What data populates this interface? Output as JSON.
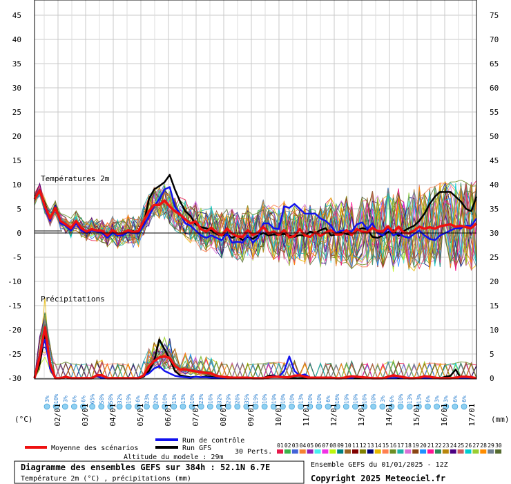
{
  "chart_data": {
    "type": "line",
    "title": "Diagramme des ensembles GEFS sur 384h : 52.1N 6.7E",
    "subtitle": "Température 2m (°C) , précipitations (mm)",
    "model_altitude": "Altitude du modele : 29m",
    "run_info": "Ensemble GEFS du 01/01/2025 - 12Z",
    "copyright": "Copyright 2025 Meteociel.fr",
    "left_unit": "(°C)",
    "right_unit": "(mm)",
    "temp_section_label": "Températures 2m",
    "precip_section_label": "Précipitations",
    "left_ticks": [
      "45",
      "40",
      "35",
      "30",
      "25",
      "20",
      "15",
      "10",
      "5",
      "0",
      "-5",
      "-10",
      "-15",
      "-20",
      "-25",
      "-30"
    ],
    "right_ticks": [
      "75",
      "70",
      "65",
      "60",
      "55",
      "50",
      "45",
      "40",
      "35",
      "30",
      "25",
      "20",
      "15",
      "10",
      "5",
      "0"
    ],
    "date_labels": [
      "02/01",
      "03/01",
      "04/01",
      "05/01",
      "06/01",
      "07/01",
      "08/01",
      "09/01",
      "10/01",
      "11/01",
      "12/01",
      "13/01",
      "14/01",
      "15/01",
      "16/01",
      "17/01"
    ],
    "precip_probabilities": [
      "3%",
      "10%",
      "3%",
      "6%",
      "6%",
      "65%",
      "58%",
      "58%",
      "32%",
      "19%",
      "6%",
      "23%",
      "29%",
      "10%",
      "13%",
      "13%",
      "10%",
      "23%",
      "16%",
      "32%",
      "29%",
      "26%",
      "35%",
      "19%",
      "10%",
      "19%",
      "10%",
      "10%",
      "13%",
      "10%",
      "10%",
      "6%",
      "16%",
      "19%",
      "10%",
      "16%",
      "10%",
      "3%",
      "6%",
      "10%",
      "13%",
      "13%",
      "6%",
      "3%",
      "3%",
      "6%",
      "6%"
    ],
    "ylim_temp": [
      -30,
      45
    ],
    "ylim_precip": [
      0,
      75
    ],
    "legend": {
      "mean": "Moyenne des scénarios",
      "control": "Run de contrôle",
      "gfs": "Run GFS",
      "perts_label": "30 Perts.",
      "pert_ids": [
        "01",
        "02",
        "03",
        "04",
        "05",
        "06",
        "07",
        "08",
        "09",
        "10",
        "11",
        "12",
        "13",
        "14",
        "15",
        "16",
        "17",
        "18",
        "19",
        "20",
        "21",
        "22",
        "23",
        "24",
        "25",
        "26",
        "27",
        "28",
        "29",
        "30"
      ]
    },
    "colors": {
      "mean": "#ee1111",
      "control": "#1111ee",
      "gfs": "#000000",
      "perts": [
        "#e6194b",
        "#3cb44b",
        "#4363d8",
        "#f58231",
        "#911eb4",
        "#46f0f0",
        "#f032e6",
        "#bcf60c",
        "#008080",
        "#9a6324",
        "#800000",
        "#808000",
        "#000075",
        "#e6b800",
        "#ff7f50",
        "#6b8e23",
        "#20b2aa",
        "#da70d6",
        "#8b4513",
        "#1e90ff",
        "#ff1493",
        "#2e8b57",
        "#b8860b",
        "#4b0082",
        "#cd5c5c",
        "#00ced1",
        "#9acd32",
        "#ff8c00",
        "#708090",
        "#556b2f"
      ]
    },
    "series": [
      {
        "name": "Moyenne des scénarios",
        "temp": [
          7,
          8.8,
          5.5,
          3,
          5.2,
          2.5,
          1.8,
          1,
          2.5,
          1,
          0.3,
          0.8,
          0.5,
          0.5,
          -0.5,
          0.6,
          -0.2,
          0,
          0.6,
          0.2,
          0.4,
          2.5,
          4.5,
          5.8,
          5.8,
          6.7,
          5.5,
          4.5,
          3.8,
          2.8,
          2,
          2.4,
          0.8,
          0.3,
          1.1,
          0.1,
          -0.5,
          0.9,
          -0.1,
          -0.7,
          -0.8,
          0.6,
          -0.4,
          0.1,
          1.3,
          -0.1,
          0.3,
          -0.4,
          0.6,
          -0.9,
          -0.6,
          0.8,
          -0.5,
          -0.8,
          0.2,
          -0.6,
          0.1,
          0.6,
          -0.3,
          -0.3,
          0.6,
          -0.4,
          0.8,
          0.3,
          0.1,
          1.1,
          0.4,
          0.3,
          1.4,
          0.1,
          1.3,
          0.1,
          -0.1,
          0.5,
          1.3,
          0.9,
          1.2,
          0.9,
          1.4,
          1.6,
          1.8,
          1.3,
          1.5,
          1.2,
          1.0,
          2.0
        ],
        "precip": [
          0,
          4.5,
          10.5,
          3,
          0,
          0,
          0.3,
          0,
          0,
          0,
          0,
          0,
          0.6,
          0.6,
          0,
          0,
          0,
          0,
          0,
          0,
          0,
          0.6,
          2.5,
          3.5,
          4.3,
          4.5,
          4.2,
          2.5,
          1.8,
          1.8,
          1.6,
          1.4,
          1.2,
          1.1,
          1,
          0.5,
          0.3,
          0.2,
          0.1,
          0.1,
          0.1,
          0.1,
          0,
          0,
          0,
          0.2,
          0.3,
          0.3,
          0.2,
          0.2,
          0.5,
          0.6,
          0.3,
          0.1,
          0.1,
          0.1,
          0.1,
          0.1,
          0,
          0,
          0.2,
          0.4,
          0.3,
          0.2,
          0.1,
          0,
          0,
          0,
          0.3,
          0.6,
          0.4,
          0.2,
          0,
          0,
          0.1,
          0.4,
          0.3,
          0.1,
          0,
          0,
          0,
          0.1,
          0.3,
          0.3,
          0.2,
          0
        ]
      },
      {
        "name": "Run de contrôle",
        "temp": [
          7,
          9,
          5,
          2.5,
          5.5,
          2,
          1.5,
          0.5,
          2,
          0.5,
          0,
          0.5,
          0.3,
          0,
          -1,
          0,
          -0.5,
          -0.5,
          0.2,
          0,
          0,
          1.5,
          3.5,
          5.5,
          7,
          9,
          9.5,
          5.5,
          4,
          2,
          1.5,
          0.5,
          -0.5,
          -1,
          -0.5,
          -1,
          -1.5,
          0,
          -2,
          -1.8,
          -2,
          -0.5,
          -2,
          -1,
          2,
          2,
          1,
          0.8,
          5.5,
          5.2,
          6,
          5,
          4,
          4,
          4,
          3,
          2.5,
          1.5,
          0,
          0.5,
          0.5,
          0.3,
          1.8,
          2.2,
          0.8,
          2,
          0,
          -0.5,
          1,
          -0.5,
          0,
          -0.7,
          -1,
          -0.2,
          0.5,
          -0.5,
          -1.2,
          -1.5,
          -0.5,
          0,
          0.5,
          1,
          1,
          1.5,
          1.5,
          3
        ],
        "precip": [
          0,
          5,
          8,
          2,
          0,
          0,
          0.3,
          0,
          0,
          0,
          0,
          0,
          0.5,
          0,
          0,
          0,
          0,
          0,
          0,
          0,
          0,
          0.5,
          1,
          2,
          2.5,
          1.5,
          1,
          0.5,
          0.3,
          0.2,
          0.1,
          0.3,
          0.2,
          0.2,
          0.1,
          0,
          0,
          0,
          0,
          0,
          0,
          0,
          0,
          0,
          0,
          0.2,
          0.5,
          0.3,
          1.5,
          4.5,
          1.5,
          0.5,
          0.8,
          0.1,
          0.2,
          0,
          0,
          0,
          0,
          0,
          0,
          0,
          0.4,
          0.2,
          0,
          0,
          0,
          0,
          0,
          0,
          0.2,
          0,
          0,
          0,
          0,
          0,
          0,
          0,
          0,
          0,
          0,
          0,
          0,
          0,
          0,
          0
        ]
      },
      {
        "name": "Run GFS",
        "temp": [
          7.5,
          8.5,
          6,
          2.8,
          5.6,
          2.3,
          1.6,
          0.7,
          2.5,
          0.6,
          0.2,
          0.7,
          0.6,
          0.2,
          -0.4,
          0.2,
          -0.6,
          -0.2,
          0.5,
          0.4,
          0,
          2,
          7,
          9,
          9.7,
          10.5,
          12,
          9,
          6.5,
          4.5,
          3.5,
          1.8,
          1.2,
          1,
          0.5,
          -0.2,
          -0.5,
          -0.3,
          -1,
          -0.5,
          -1.5,
          -0.8,
          -1.2,
          -0.5,
          0,
          -0.5,
          -0.3,
          -0.4,
          -0.2,
          -0.5,
          -0.8,
          -0.4,
          -0.6,
          0.3,
          0,
          0.6,
          1,
          -0.5,
          -0.3,
          0.1,
          -0.2,
          -0.4,
          0.5,
          1,
          0.8,
          -0.8,
          -1,
          -0.5,
          0.2,
          0.6,
          -0.6,
          0.4,
          1,
          1.5,
          2.5,
          4,
          6,
          7.5,
          8.5,
          8.5,
          8.5,
          7.5,
          6.5,
          5,
          4.5,
          7.5
        ],
        "precip": [
          0,
          3,
          9,
          2,
          0,
          0,
          0.2,
          0,
          0,
          0,
          0,
          0,
          0.4,
          0,
          0,
          0,
          0,
          0,
          0,
          0,
          0,
          0.3,
          1.5,
          3.5,
          8,
          6,
          4,
          1.5,
          0.6,
          0.4,
          0.2,
          0.3,
          0.2,
          0.4,
          0.3,
          0.1,
          0,
          0,
          0,
          0,
          0,
          0,
          0,
          0,
          0,
          0.5,
          0.6,
          0.2,
          0.3,
          0,
          0,
          0,
          0,
          0,
          0,
          0,
          0,
          0,
          0,
          0,
          0,
          0,
          0,
          0,
          0,
          0,
          0,
          0,
          0,
          0,
          0,
          0,
          0,
          0,
          0,
          0,
          0,
          0,
          0,
          0.3,
          0.5,
          1.8,
          0,
          0,
          0,
          0
        ]
      }
    ]
  }
}
